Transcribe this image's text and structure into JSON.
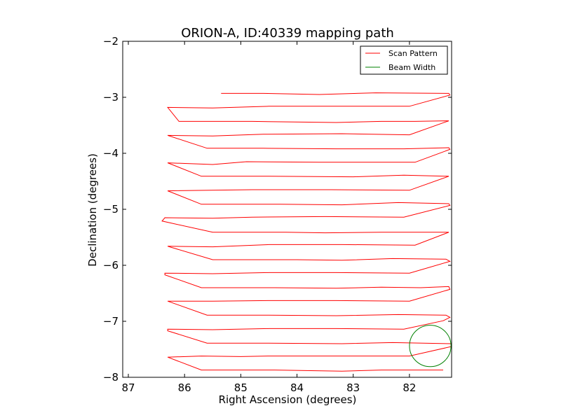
{
  "chart_data": {
    "type": "line",
    "title": "ORION-A, ID:40339 mapping path",
    "xlabel": "Right Ascension (degrees)",
    "ylabel": "Declination (degrees)",
    "xlim": [
      87.1,
      81.25
    ],
    "ylim": [
      -8,
      -2
    ],
    "x_inverted": true,
    "xticks": [
      87,
      86,
      85,
      84,
      83,
      82
    ],
    "yticks": [
      -2,
      -3,
      -4,
      -5,
      -6,
      -7,
      -8
    ],
    "xtick_labels": [
      "87",
      "86",
      "85",
      "84",
      "83",
      "82"
    ],
    "ytick_labels": [
      "−2",
      "−3",
      "−4",
      "−5",
      "−6",
      "−7",
      "−8"
    ],
    "grid": false,
    "legend_position": "top-right",
    "series": [
      {
        "name": "Scan Pattern",
        "color": "#ff0000",
        "points": [
          [
            85.35,
            -2.93
          ],
          [
            84.6,
            -2.93
          ],
          [
            83.6,
            -2.95
          ],
          [
            82.6,
            -2.92
          ],
          [
            81.3,
            -2.93
          ],
          [
            81.28,
            -2.96
          ],
          [
            82.0,
            -3.16
          ],
          [
            82.7,
            -3.16
          ],
          [
            84.5,
            -3.16
          ],
          [
            85.5,
            -3.19
          ],
          [
            86.3,
            -3.18
          ],
          [
            86.1,
            -3.43
          ],
          [
            84.8,
            -3.43
          ],
          [
            83.3,
            -3.45
          ],
          [
            82.5,
            -3.43
          ],
          [
            81.9,
            -3.43
          ],
          [
            81.3,
            -3.42
          ],
          [
            82.0,
            -3.67
          ],
          [
            83.2,
            -3.65
          ],
          [
            84.6,
            -3.66
          ],
          [
            85.5,
            -3.69
          ],
          [
            86.3,
            -3.68
          ],
          [
            85.6,
            -3.91
          ],
          [
            84.6,
            -3.91
          ],
          [
            83.3,
            -3.92
          ],
          [
            82.1,
            -3.92
          ],
          [
            81.3,
            -3.9
          ],
          [
            81.28,
            -3.93
          ],
          [
            81.9,
            -4.16
          ],
          [
            83.6,
            -4.16
          ],
          [
            84.9,
            -4.15
          ],
          [
            85.5,
            -4.2
          ],
          [
            86.3,
            -4.17
          ],
          [
            85.7,
            -4.41
          ],
          [
            84.5,
            -4.41
          ],
          [
            83.0,
            -4.42
          ],
          [
            82.1,
            -4.39
          ],
          [
            81.3,
            -4.41
          ],
          [
            82.0,
            -4.66
          ],
          [
            83.4,
            -4.65
          ],
          [
            84.8,
            -4.65
          ],
          [
            86.3,
            -4.67
          ],
          [
            85.7,
            -4.91
          ],
          [
            84.3,
            -4.91
          ],
          [
            83.2,
            -4.92
          ],
          [
            82.2,
            -4.88
          ],
          [
            81.3,
            -4.9
          ],
          [
            81.28,
            -4.93
          ],
          [
            82.1,
            -5.14
          ],
          [
            83.5,
            -5.13
          ],
          [
            84.8,
            -5.14
          ],
          [
            85.5,
            -5.16
          ],
          [
            86.35,
            -5.15
          ],
          [
            86.4,
            -5.21
          ],
          [
            85.5,
            -5.41
          ],
          [
            84.2,
            -5.41
          ],
          [
            83.5,
            -5.42
          ],
          [
            82.5,
            -5.41
          ],
          [
            81.3,
            -5.41
          ],
          [
            81.9,
            -5.64
          ],
          [
            83.2,
            -5.63
          ],
          [
            84.5,
            -5.63
          ],
          [
            85.5,
            -5.67
          ],
          [
            86.3,
            -5.66
          ],
          [
            85.5,
            -5.9
          ],
          [
            84.0,
            -5.9
          ],
          [
            83.2,
            -5.91
          ],
          [
            82.3,
            -5.88
          ],
          [
            81.35,
            -5.89
          ],
          [
            81.28,
            -5.93
          ],
          [
            82.0,
            -6.14
          ],
          [
            83.3,
            -6.13
          ],
          [
            84.5,
            -6.13
          ],
          [
            85.5,
            -6.15
          ],
          [
            86.35,
            -6.14
          ],
          [
            86.35,
            -6.17
          ],
          [
            85.7,
            -6.4
          ],
          [
            84.4,
            -6.4
          ],
          [
            83.3,
            -6.41
          ],
          [
            82.5,
            -6.39
          ],
          [
            81.8,
            -6.4
          ],
          [
            81.3,
            -6.38
          ],
          [
            81.28,
            -6.43
          ],
          [
            82.0,
            -6.64
          ],
          [
            83.3,
            -6.63
          ],
          [
            84.5,
            -6.63
          ],
          [
            85.5,
            -6.64
          ],
          [
            86.3,
            -6.64
          ],
          [
            85.6,
            -6.89
          ],
          [
            84.5,
            -6.89
          ],
          [
            83.3,
            -6.9
          ],
          [
            82.2,
            -6.88
          ],
          [
            81.35,
            -6.89
          ],
          [
            81.28,
            -6.93
          ],
          [
            81.4,
            -6.99
          ],
          [
            82.1,
            -7.14
          ],
          [
            83.3,
            -7.13
          ],
          [
            84.5,
            -7.13
          ],
          [
            85.5,
            -7.15
          ],
          [
            86.3,
            -7.14
          ],
          [
            86.3,
            -7.17
          ],
          [
            85.6,
            -7.39
          ],
          [
            84.5,
            -7.39
          ],
          [
            83.2,
            -7.4
          ],
          [
            82.3,
            -7.38
          ],
          [
            81.25,
            -7.4
          ],
          [
            81.25,
            -7.45
          ],
          [
            82.0,
            -7.62
          ],
          [
            83.3,
            -7.62
          ],
          [
            84.5,
            -7.62
          ],
          [
            85.0,
            -7.63
          ],
          [
            85.7,
            -7.62
          ],
          [
            86.3,
            -7.64
          ],
          [
            85.7,
            -7.87
          ],
          [
            84.4,
            -7.87
          ],
          [
            83.2,
            -7.89
          ],
          [
            82.5,
            -7.87
          ],
          [
            81.4,
            -7.87
          ]
        ]
      },
      {
        "name": "Beam Width",
        "color": "#008000",
        "shape": "circle",
        "center": [
          81.63,
          -7.44
        ],
        "radius_y": 0.37
      }
    ]
  }
}
